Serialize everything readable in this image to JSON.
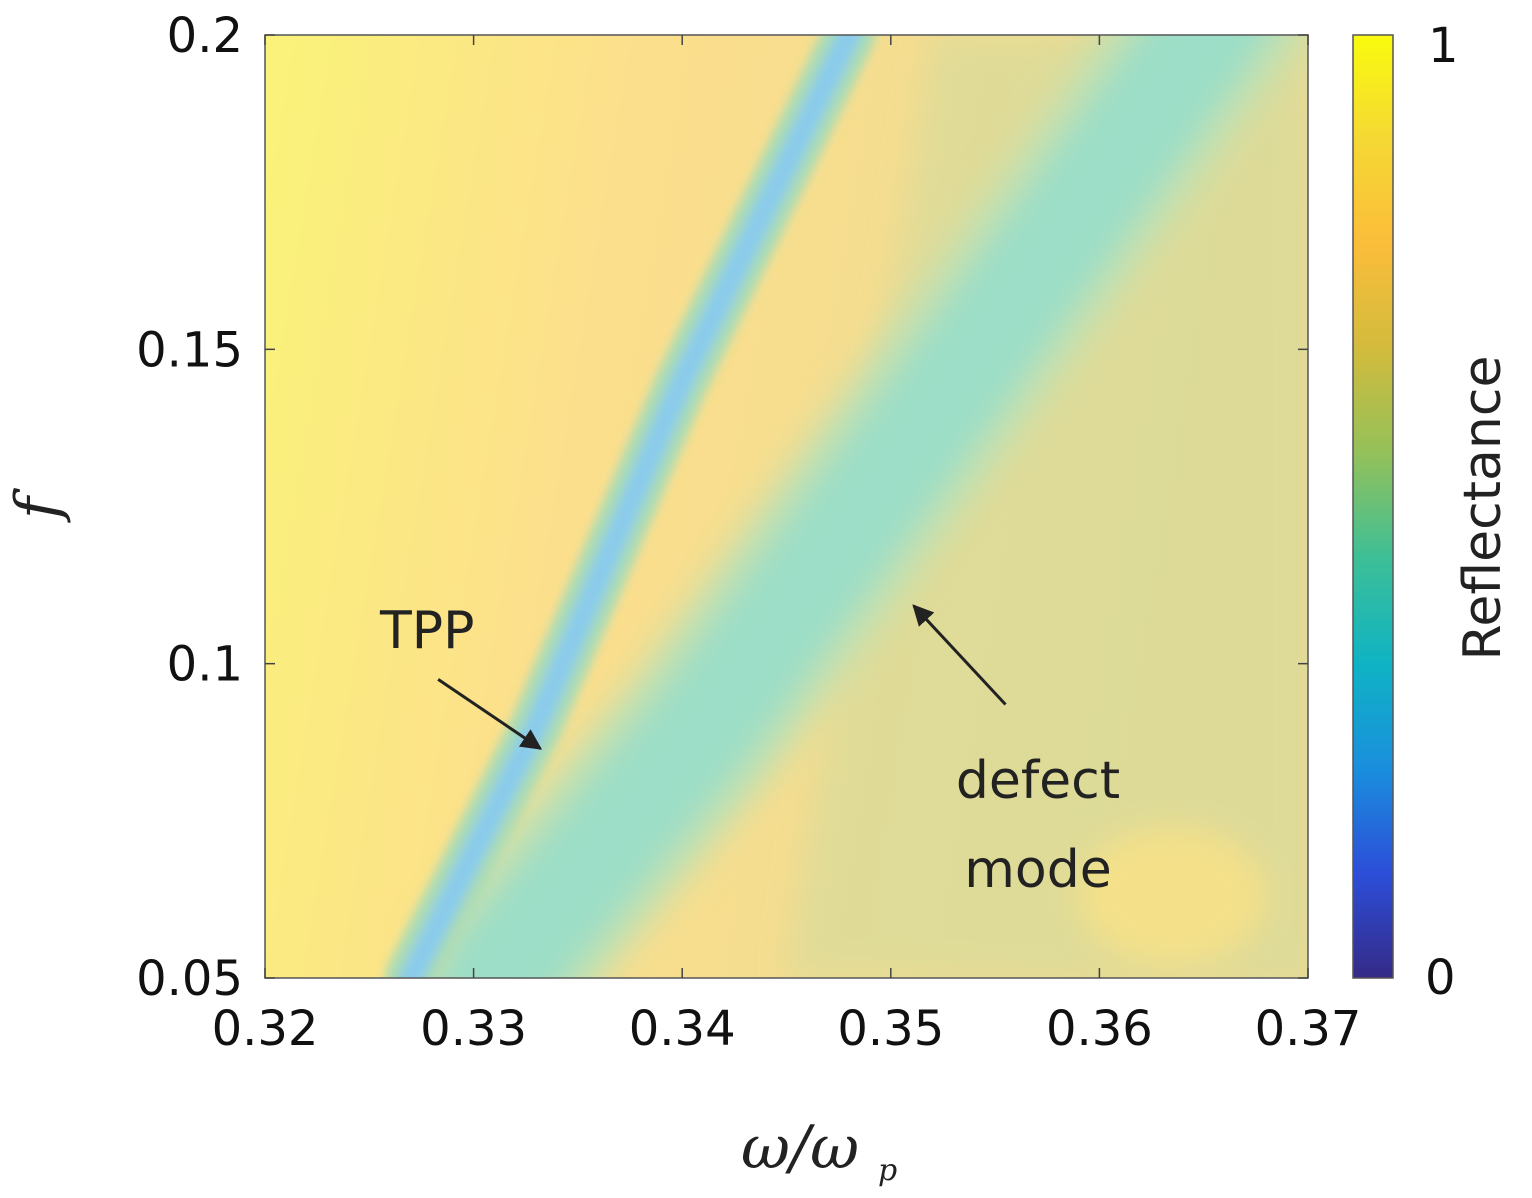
{
  "chart_data": {
    "type": "heatmap",
    "title": "",
    "xlabel": {
      "main": "ω/ω",
      "sub": "p"
    },
    "ylabel": "f",
    "xlim": [
      0.32,
      0.37
    ],
    "ylim": [
      0.05,
      0.2
    ],
    "xticks": [
      {
        "value": 0.32,
        "label": "0.32"
      },
      {
        "value": 0.33,
        "label": "0.33"
      },
      {
        "value": 0.34,
        "label": "0.34"
      },
      {
        "value": 0.35,
        "label": "0.35"
      },
      {
        "value": 0.36,
        "label": "0.36"
      },
      {
        "value": 0.37,
        "label": "0.37"
      }
    ],
    "yticks": [
      {
        "value": 0.05,
        "label": "0.05"
      },
      {
        "value": 0.1,
        "label": "0.1"
      },
      {
        "value": 0.15,
        "label": "0.15"
      },
      {
        "value": 0.2,
        "label": "0.2"
      }
    ],
    "colorbar": {
      "label": "Reflectance",
      "min": 0,
      "max": 1,
      "min_label": "0",
      "max_label": "1",
      "colormap": "parula",
      "stops": [
        "#352a87",
        "#2c4ed9",
        "#1a8fdd",
        "#0fb3c4",
        "#3dbf97",
        "#93c15a",
        "#d2bb3d",
        "#fbbd3a",
        "#f5d834",
        "#f9fb0e"
      ]
    },
    "ridges": [
      {
        "name": "TPP",
        "points": [
          [
            0.327,
            0.05
          ],
          [
            0.333,
            0.09
          ],
          [
            0.34,
            0.145
          ],
          [
            0.348,
            0.2
          ]
        ],
        "min_reflectance": 0.25
      },
      {
        "name": "defect mode",
        "points": [
          [
            0.331,
            0.05
          ],
          [
            0.341,
            0.09
          ],
          [
            0.352,
            0.14
          ],
          [
            0.365,
            0.2
          ]
        ],
        "min_reflectance": 0.5
      }
    ],
    "annotations": [
      {
        "text": "TPP",
        "arrow_from": [
          0.3283,
          0.0975
        ],
        "arrow_to": [
          0.3332,
          0.0865
        ]
      },
      {
        "text": "defect",
        "text2": "mode",
        "arrow_from": [
          0.3555,
          0.0935
        ],
        "arrow_to": [
          0.3511,
          0.1092
        ]
      }
    ]
  }
}
